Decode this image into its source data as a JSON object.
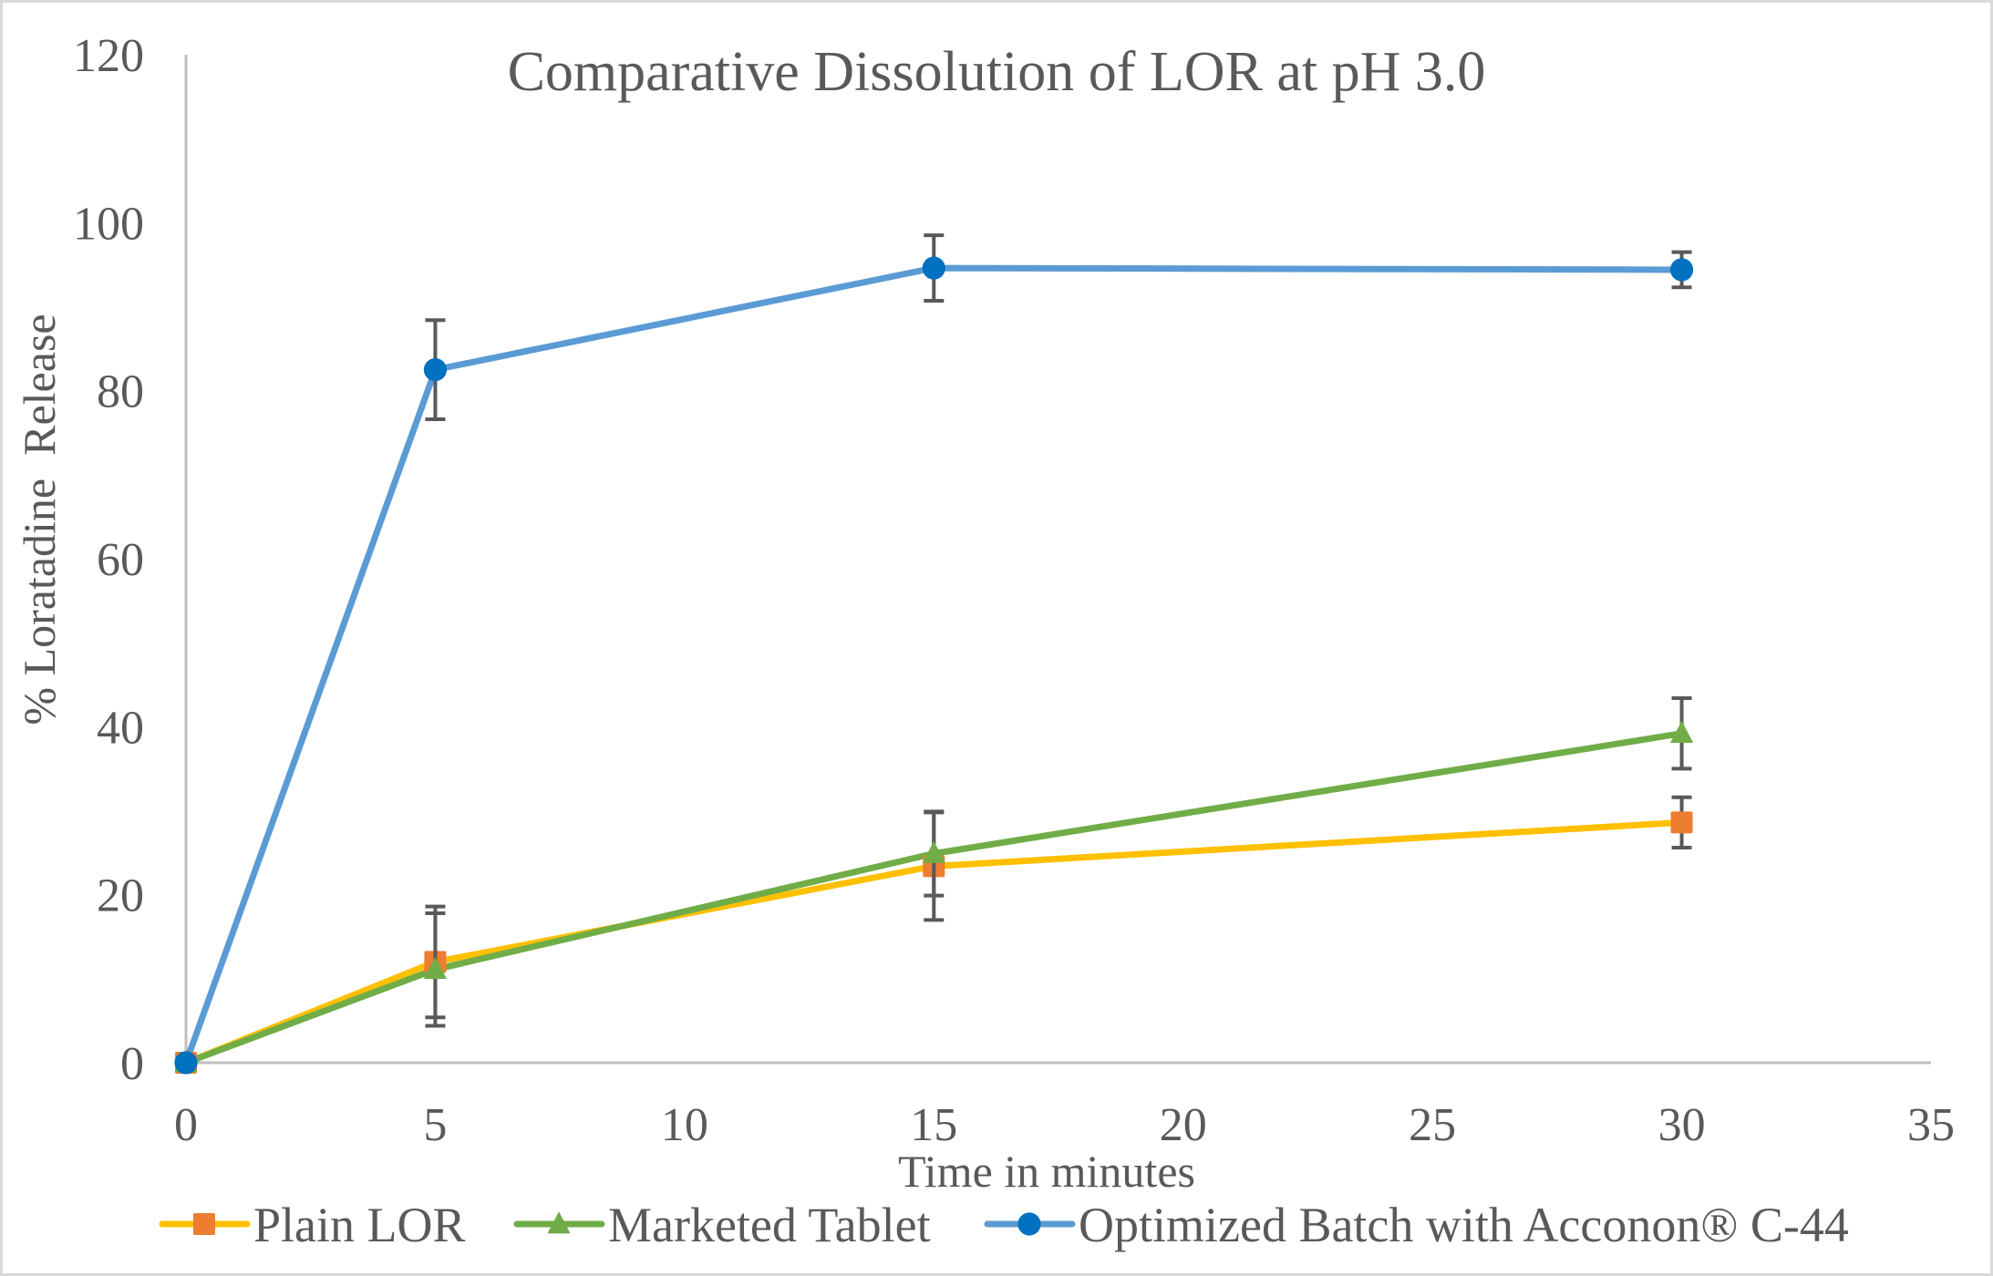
{
  "chart_data": {
    "type": "line",
    "title": "Comparative Dissolution of LOR at pH 3.0",
    "xlabel": "Time in minutes",
    "ylabel": "% Loratadine  Release",
    "xlim": [
      0,
      35
    ],
    "ylim": [
      0,
      120
    ],
    "xticks": [
      0,
      5,
      10,
      15,
      20,
      25,
      30,
      35
    ],
    "yticks": [
      0,
      20,
      40,
      60,
      80,
      100,
      120
    ],
    "grid": false,
    "legend_position": "bottom",
    "x": [
      0,
      5,
      15,
      30
    ],
    "series": [
      {
        "name": "Plain LOR",
        "values": [
          0,
          12.0,
          23.4,
          28.6
        ],
        "error": [
          0,
          6.6,
          6.4,
          3.0
        ],
        "line_color": "#FFC000",
        "marker_color": "#ED7D31",
        "marker": "square"
      },
      {
        "name": "Marketed Tablet",
        "values": [
          0,
          11.1,
          24.9,
          39.2
        ],
        "error": [
          0,
          6.7,
          5.0,
          4.2
        ],
        "line_color": "#70AD47",
        "marker_color": "#70AD47",
        "marker": "triangle"
      },
      {
        "name": "Optimized Batch with Acconon® C-44",
        "values": [
          0,
          82.5,
          94.6,
          94.4
        ],
        "error": [
          0,
          5.9,
          3.9,
          2.1
        ],
        "line_color": "#5B9BD5",
        "marker_color": "#0070C0",
        "marker": "circle"
      }
    ],
    "error_bar_color": "#595959",
    "axis_color": "#BFBFBF",
    "text_color": "#595959"
  }
}
